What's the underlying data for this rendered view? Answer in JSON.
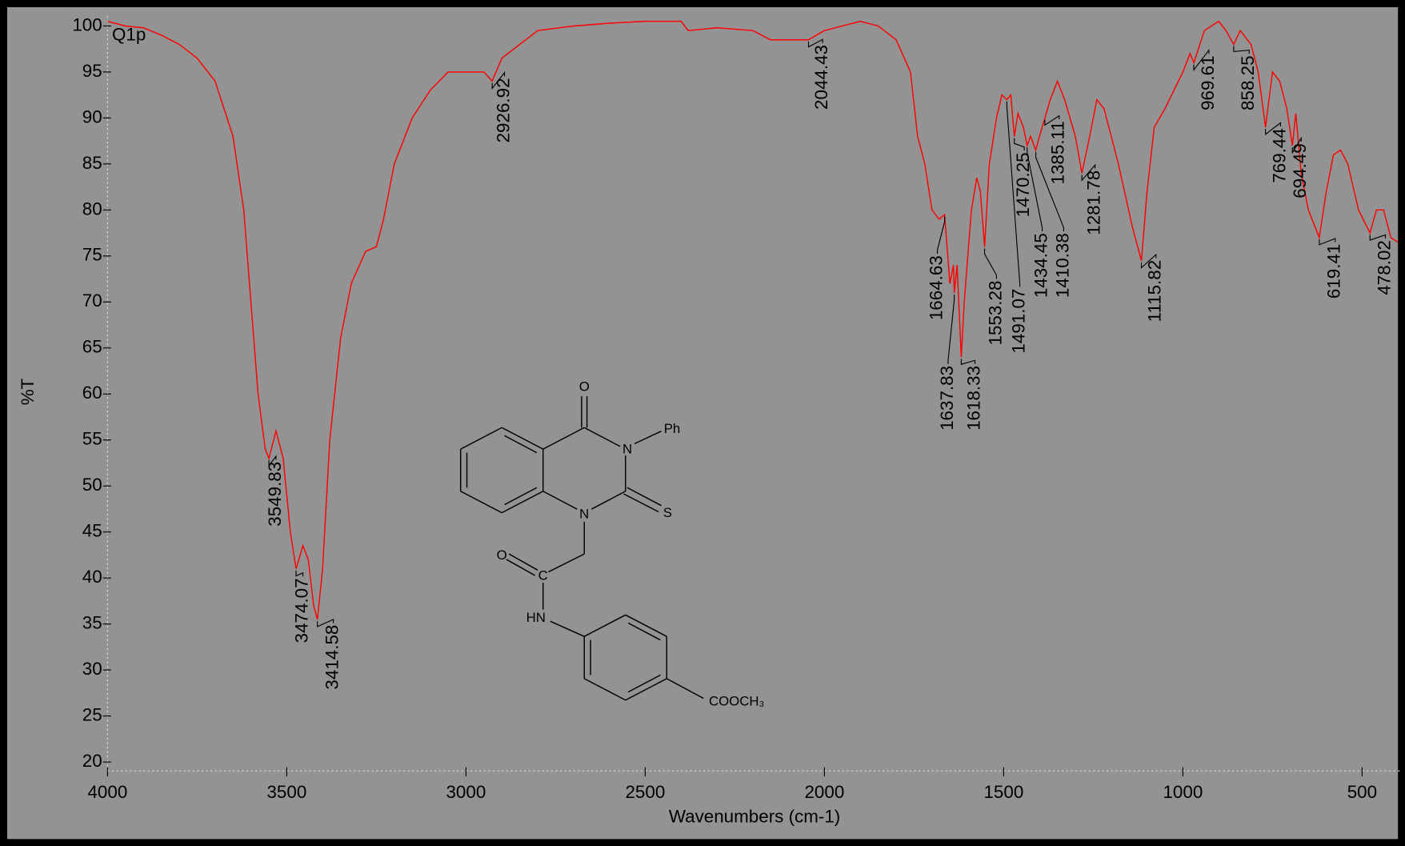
{
  "chart_data": {
    "type": "line",
    "title": "Q1p",
    "xlabel": "Wavenumbers (cm-1)",
    "ylabel": "%T",
    "color": "#ff0000",
    "x": [
      4000,
      3950,
      3900,
      3850,
      3800,
      3750,
      3700,
      3650,
      3620,
      3600,
      3580,
      3560,
      3549.83,
      3530,
      3510,
      3490,
      3474.07,
      3455,
      3440,
      3425,
      3414.58,
      3400,
      3380,
      3350,
      3320,
      3280,
      3250,
      3230,
      3200,
      3150,
      3100,
      3050,
      3000,
      2950,
      2926.92,
      2900,
      2850,
      2800,
      2700,
      2600,
      2500,
      2400,
      2380,
      2300,
      2200,
      2150,
      2050,
      2044.43,
      2000,
      1950,
      1900,
      1850,
      1800,
      1760,
      1740,
      1720,
      1700,
      1680,
      1664.63,
      1650,
      1640,
      1637.83,
      1630,
      1618.33,
      1610,
      1590,
      1575,
      1565,
      1553.28,
      1540,
      1520,
      1505,
      1491.07,
      1480,
      1470.25,
      1460,
      1445,
      1434.45,
      1425,
      1410.38,
      1400,
      1385.11,
      1370,
      1350,
      1330,
      1300,
      1281.78,
      1260,
      1240,
      1220,
      1180,
      1140,
      1115.82,
      1100,
      1080,
      1050,
      1000,
      980,
      969.61,
      940,
      900,
      880,
      858.25,
      840,
      810,
      790,
      769.44,
      750,
      730,
      710,
      694.49,
      685,
      670,
      650,
      619.41,
      600,
      580,
      560,
      540,
      510,
      478.02,
      460,
      440,
      420,
      400
    ],
    "values": [
      100.5,
      100,
      99.8,
      99,
      98,
      96.5,
      94,
      88,
      80,
      70,
      60,
      54,
      53,
      56,
      53,
      45,
      41,
      43.5,
      42,
      37,
      35.5,
      41,
      55,
      66,
      72,
      75.5,
      76,
      79,
      85,
      90,
      93,
      95,
      95,
      95,
      94,
      96.5,
      98,
      99.5,
      100,
      100.3,
      100.5,
      100.5,
      99.5,
      99.8,
      99.5,
      98.5,
      98.5,
      98.5,
      99.5,
      100,
      100.5,
      100,
      98.5,
      95,
      88,
      85,
      80,
      79,
      79.5,
      72,
      74,
      71,
      74,
      64,
      70,
      80,
      83.5,
      82,
      76,
      85,
      90,
      92.5,
      92,
      92.5,
      88,
      90.5,
      89,
      87,
      88,
      86.5,
      88,
      90,
      92,
      94,
      92,
      88,
      84,
      88,
      92,
      91,
      85,
      78,
      74.5,
      82,
      89,
      91,
      95,
      97,
      96,
      99.5,
      100.5,
      99.5,
      98,
      99.5,
      98,
      95,
      89,
      95,
      94,
      91,
      87,
      90.5,
      84,
      80,
      77,
      82,
      86,
      86.5,
      85,
      80,
      77.5,
      80,
      80,
      77,
      76.5
    ],
    "peaks": {
      "x": [
        3549.83,
        3474.07,
        3414.58,
        2926.92,
        2044.43,
        1664.63,
        1637.83,
        1618.33,
        1553.28,
        1491.07,
        1470.25,
        1434.45,
        1410.38,
        1385.11,
        1281.78,
        1115.82,
        969.61,
        858.25,
        769.44,
        694.49,
        619.41,
        478.02
      ],
      "y": [
        53,
        41,
        35.5,
        94,
        98.5,
        79.5,
        71,
        64,
        76,
        92,
        88,
        87,
        86.5,
        90,
        84,
        74.5,
        96,
        98,
        89,
        87,
        77,
        77.5
      ]
    },
    "xlim": [
      4000,
      400
    ],
    "ylim": [
      19,
      101
    ],
    "xticks": [
      4000,
      3500,
      3000,
      2500,
      2000,
      1500,
      1000,
      500
    ],
    "yticks": [
      20,
      25,
      30,
      35,
      40,
      45,
      50,
      55,
      60,
      65,
      70,
      75,
      80,
      85,
      90,
      95,
      100
    ]
  },
  "structure": {
    "labels": [
      "O",
      "N",
      "Ph",
      "S",
      "N",
      "O",
      "C",
      "HN",
      "COOCH₃"
    ]
  }
}
